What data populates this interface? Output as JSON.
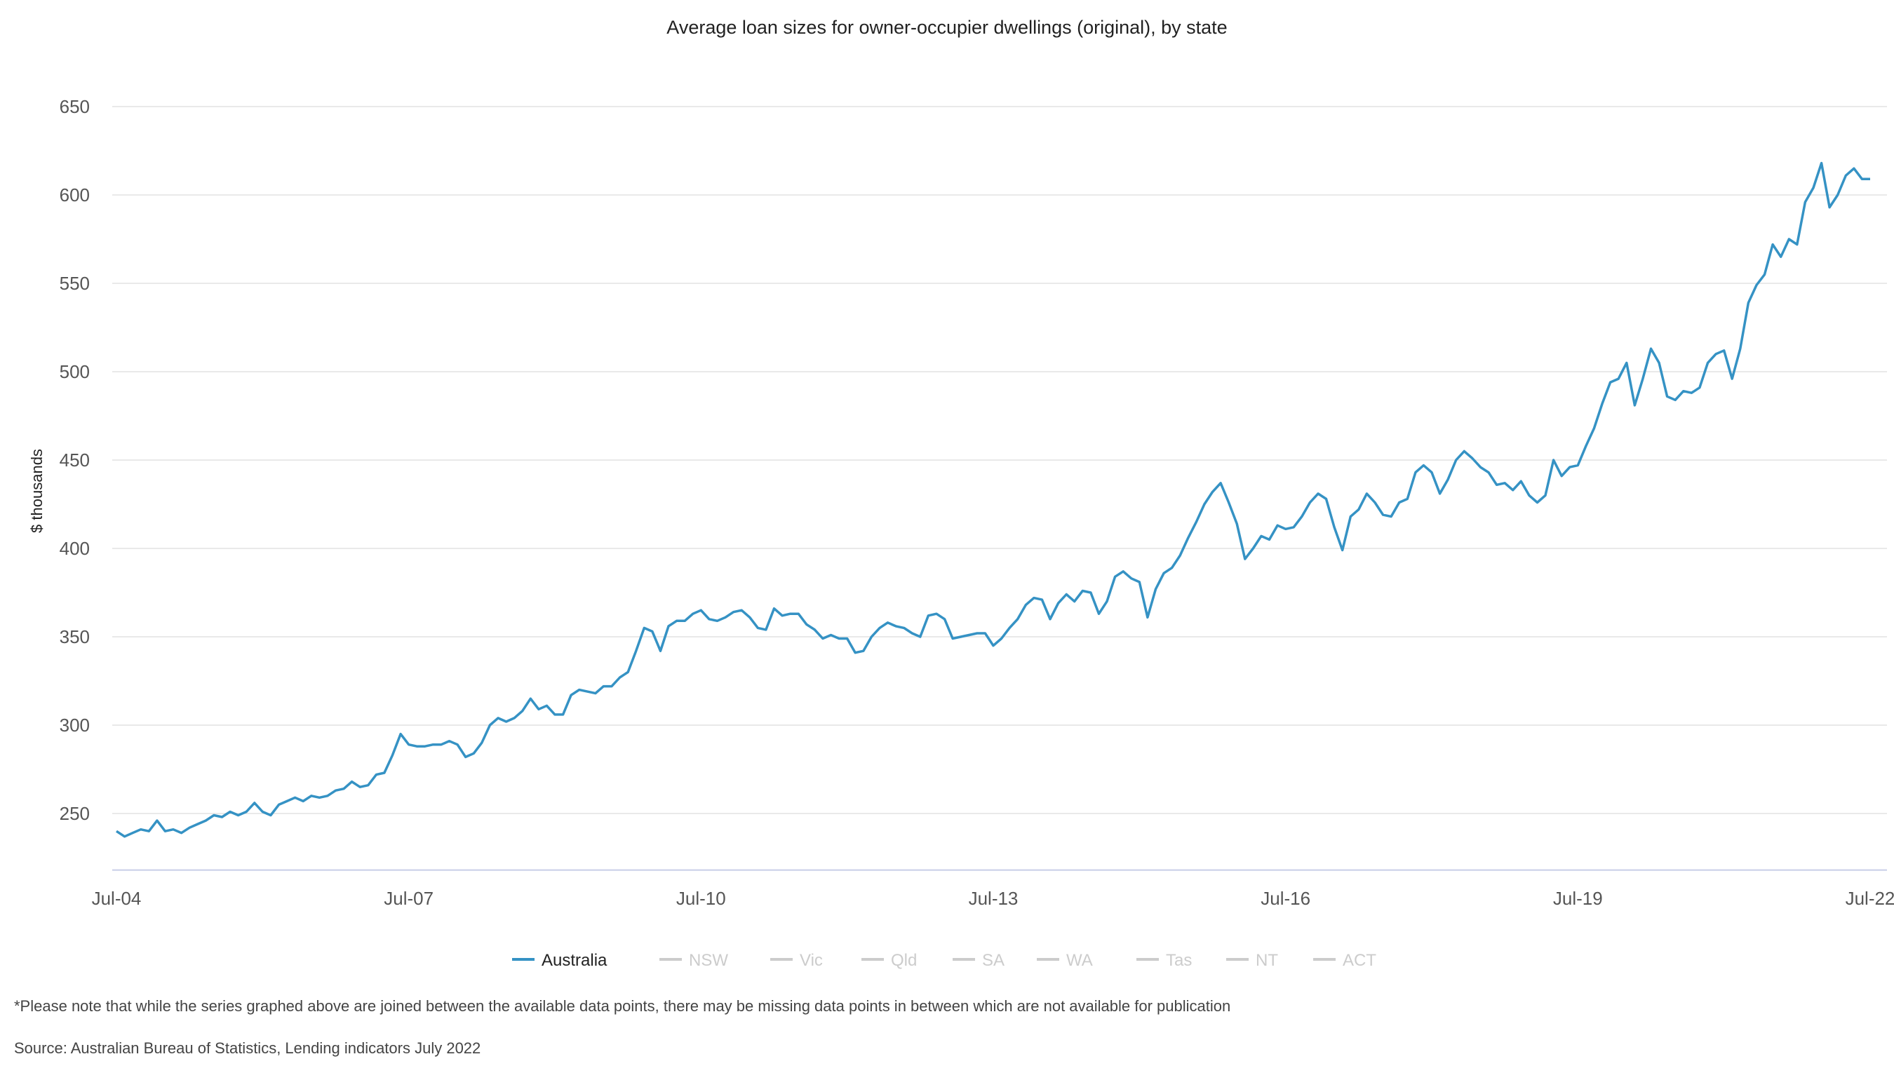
{
  "chart_data": {
    "type": "line",
    "title": "Average loan sizes for owner-occupier dwellings (original), by state",
    "ylabel": "$ thousands",
    "xlabel": "",
    "ylim": [
      218,
      650
    ],
    "yticks": [
      250,
      300,
      350,
      400,
      450,
      500,
      550,
      600,
      650
    ],
    "x_start": "Jul-04",
    "x_end": "Jul-22",
    "x_ticks": [
      "Jul-04",
      "Jul-07",
      "Jul-10",
      "Jul-13",
      "Jul-16",
      "Jul-19",
      "Jul-22"
    ],
    "grid": "horizontal",
    "legend_placement": "bottom-center",
    "series": [
      {
        "name": "Australia",
        "color": "#3592c4",
        "visible": true,
        "values": [
          240,
          237,
          239,
          241,
          240,
          246,
          240,
          241,
          239,
          242,
          244,
          246,
          249,
          248,
          251,
          249,
          251,
          256,
          251,
          249,
          255,
          257,
          259,
          257,
          260,
          259,
          260,
          263,
          264,
          268,
          265,
          266,
          272,
          273,
          283,
          295,
          289,
          288,
          288,
          289,
          289,
          291,
          289,
          282,
          284,
          290,
          300,
          304,
          302,
          304,
          308,
          315,
          309,
          311,
          306,
          306,
          317,
          320,
          319,
          318,
          322,
          322,
          327,
          330,
          342,
          355,
          353,
          342,
          356,
          359,
          359,
          363,
          365,
          360,
          359,
          361,
          364,
          365,
          361,
          355,
          354,
          366,
          362,
          363,
          363,
          357,
          354,
          349,
          351,
          349,
          349,
          341,
          342,
          350,
          355,
          358,
          356,
          355,
          352,
          350,
          362,
          363,
          360,
          349,
          350,
          351,
          352,
          352,
          345,
          349,
          355,
          360,
          368,
          372,
          371,
          360,
          369,
          374,
          370,
          376,
          375,
          363,
          370,
          384,
          387,
          383,
          381,
          361,
          377,
          386,
          389,
          396,
          406,
          415,
          425,
          432,
          437,
          426,
          414,
          394,
          400,
          407,
          405,
          413,
          411,
          412,
          418,
          426,
          431,
          428,
          412,
          399,
          418,
          422,
          431,
          426,
          419,
          418,
          426,
          428,
          443,
          447,
          443,
          431,
          439,
          450,
          455,
          451,
          446,
          443,
          436,
          437,
          433,
          438,
          430,
          426,
          430,
          450,
          441,
          446,
          447,
          458,
          468,
          482,
          494,
          496,
          505,
          481,
          496,
          513,
          505,
          486,
          484,
          489,
          488,
          491,
          505,
          510,
          512,
          496,
          513,
          539,
          549,
          555,
          572,
          565,
          575,
          572,
          596,
          604,
          618,
          593,
          600,
          611,
          615,
          609,
          609
        ]
      },
      {
        "name": "NSW",
        "color": "#cfcfcf",
        "visible": false,
        "values": []
      },
      {
        "name": "Vic",
        "color": "#cfcfcf",
        "visible": false,
        "values": []
      },
      {
        "name": "Qld",
        "color": "#cfcfcf",
        "visible": false,
        "values": []
      },
      {
        "name": "SA",
        "color": "#cfcfcf",
        "visible": false,
        "values": []
      },
      {
        "name": "WA",
        "color": "#cfcfcf",
        "visible": false,
        "values": []
      },
      {
        "name": "Tas",
        "color": "#cfcfcf",
        "visible": false,
        "values": []
      },
      {
        "name": "NT",
        "color": "#cfcfcf",
        "visible": false,
        "values": []
      },
      {
        "name": "ACT",
        "color": "#cfcfcf",
        "visible": false,
        "values": []
      }
    ]
  },
  "footnote": "*Please note that while the series graphed above are joined between the available data points, there may be missing data points in between which are not available for publication",
  "source": "Source: Australian Bureau of Statistics, Lending indicators July 2022",
  "colors": {
    "gridline": "#e2e2e2",
    "axis": "#c8cde8",
    "active_legend_text": "#222222",
    "inactive_legend": "#cccccc"
  }
}
